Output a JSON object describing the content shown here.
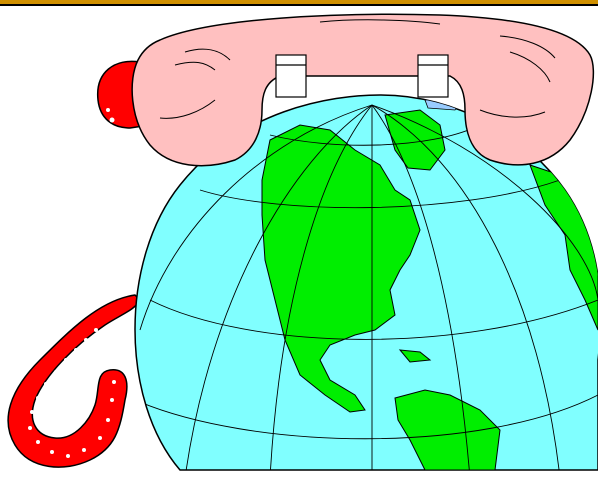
{
  "scene": {
    "subject": "world-phone-clipart"
  },
  "colors": {
    "rule": "#d09000",
    "ocean": "#80ffff",
    "land": "#00ee00",
    "handset": "#ffc0c0",
    "cord": "#ff0000",
    "ice": "#99ccff"
  },
  "icons": {
    "globe": "globe-icon",
    "handset": "telephone-handset-icon",
    "cord": "coiled-cord-icon"
  }
}
